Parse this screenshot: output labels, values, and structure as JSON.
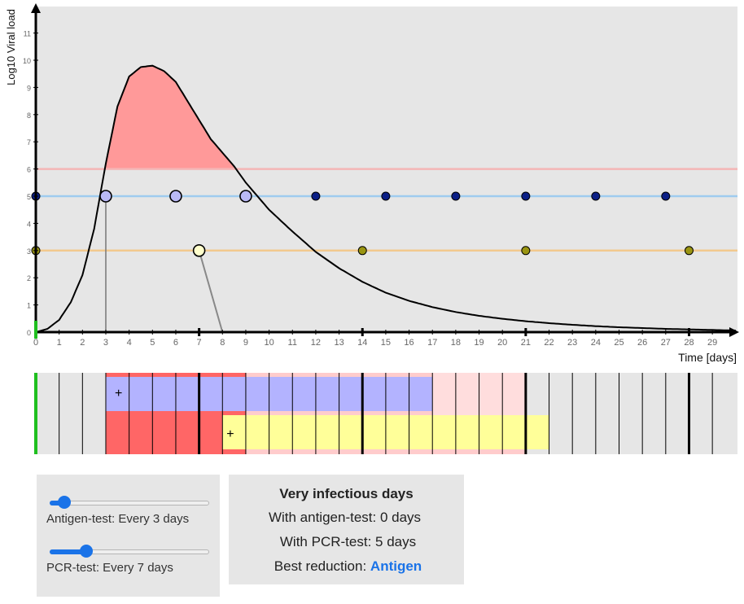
{
  "chart_data": {
    "type": "line",
    "title": "",
    "ylabel": "Log10 Viral load",
    "xlabel": "Time [days]",
    "xlim": [
      0,
      30
    ],
    "ylim": [
      0,
      12
    ],
    "x_ticks": [
      0,
      1,
      2,
      3,
      4,
      5,
      6,
      7,
      8,
      9,
      10,
      11,
      12,
      13,
      14,
      15,
      16,
      17,
      18,
      19,
      20,
      21,
      22,
      23,
      24,
      25,
      26,
      27,
      28,
      29
    ],
    "y_ticks": [
      0,
      1,
      2,
      3,
      4,
      5,
      6,
      7,
      8,
      9,
      10,
      11
    ],
    "viral_load_curve": {
      "x": [
        0,
        0.5,
        1,
        1.5,
        2,
        2.5,
        3,
        3.5,
        4,
        4.5,
        5,
        5.5,
        6,
        6.5,
        7,
        7.5,
        8,
        8.5,
        9,
        9.5,
        10,
        11,
        12,
        13,
        14,
        15,
        16,
        17,
        18,
        19,
        20,
        21,
        22,
        23,
        24,
        25,
        26,
        27,
        28,
        29,
        30
      ],
      "y": [
        0,
        0.12,
        0.45,
        1.1,
        2.1,
        3.8,
        6.2,
        8.3,
        9.4,
        9.75,
        9.8,
        9.6,
        9.2,
        8.5,
        7.8,
        7.1,
        6.6,
        6.1,
        5.5,
        5.0,
        4.5,
        3.7,
        2.95,
        2.35,
        1.85,
        1.45,
        1.15,
        0.92,
        0.74,
        0.6,
        0.49,
        0.4,
        0.33,
        0.27,
        0.22,
        0.18,
        0.15,
        0.12,
        0.1,
        0.08,
        0.06
      ]
    },
    "infectious_threshold": 6,
    "antigen_detection_level": 5,
    "pcr_detection_level": 3,
    "antigen_test_days": [
      0,
      3,
      6,
      9,
      12,
      15,
      18,
      21,
      24,
      27
    ],
    "antigen_positive_days": [
      3,
      6,
      9
    ],
    "pcr_test_days": [
      0,
      7,
      14,
      21,
      28
    ],
    "pcr_positive_days": [
      7
    ],
    "antigen_result_day": 3,
    "pcr_result_day": 8,
    "week_ticks": [
      7,
      14,
      21,
      28
    ],
    "colors": {
      "infectious_fill": "#ff9999",
      "threshold_line": "#f4b6b6",
      "antigen_line": "#9fcbef",
      "pcr_line": "#f2c98e",
      "antigen_negative": "#0b1f86",
      "antigen_positive": "#b9b9f5",
      "pcr_negative": "#9a9512",
      "pcr_positive": "#ffffcc",
      "start_marker": "#1fbf1f"
    }
  },
  "timeline": {
    "very_infectious": [
      3,
      9
    ],
    "infectious": [
      3,
      21
    ],
    "antigen_isolation": [
      3,
      17
    ],
    "pcr_isolation": [
      8,
      22
    ],
    "antigen_mark": "+",
    "pcr_mark": "+",
    "colors": {
      "very_infectious": "#ff6666",
      "infectious": "#ffcccc",
      "infectious_after_isolation": "#ffdddd",
      "antigen_isolation": "#b3b3ff",
      "pcr_isolation": "#ffff99"
    }
  },
  "controls": {
    "antigen_label": "Antigen-test: Every 3 days",
    "antigen_interval": 3,
    "pcr_label": "PCR-test: Every 7 days",
    "pcr_interval": 7,
    "slider_min": 1,
    "slider_max": 28
  },
  "stats": {
    "title": "Very infectious days",
    "antigen_line": "With antigen-test: 0 days",
    "pcr_line": "With PCR-test: 5 days",
    "best_prefix": "Best reduction: ",
    "best_value": "Antigen"
  }
}
